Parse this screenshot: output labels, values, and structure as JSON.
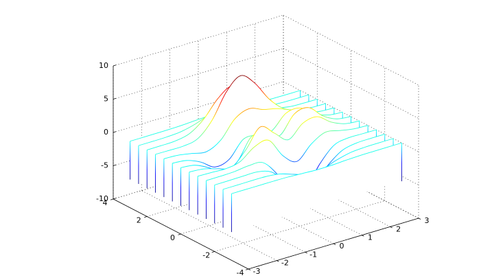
{
  "chart_data": {
    "type": "waterfall",
    "x": [
      -3,
      -2.5,
      -2,
      -1.5,
      -1,
      -0.5,
      0,
      0.5,
      1,
      1.5,
      2,
      2.5,
      3
    ],
    "y": [
      -3,
      -2.5,
      -2,
      -1.5,
      -1,
      -0.5,
      0,
      0.5,
      1,
      1.5,
      2,
      2.5,
      3
    ],
    "z": [
      [
        0,
        0,
        0,
        0,
        -0.03,
        -0.14,
        -0.24,
        -0.22,
        -0.11,
        -0.03,
        -0.01,
        0,
        0
      ],
      [
        0,
        0,
        0.02,
        0,
        -0.24,
        -0.92,
        -1.57,
        -1.41,
        -0.69,
        -0.18,
        -0.03,
        0,
        0
      ],
      [
        0,
        0.01,
        0.05,
        0.05,
        -0.59,
        -2.63,
        -4.75,
        -4.34,
        -2.1,
        -0.53,
        -0.06,
        0,
        0
      ],
      [
        0,
        0.01,
        0.08,
        0.33,
        0.15,
        -2.19,
        -5.68,
        -5.76,
        -2.63,
        -0.44,
        0.04,
        0.03,
        0
      ],
      [
        -0.01,
        -0.06,
        -0.13,
        0.3,
        1.86,
        2.22,
        -0.72,
        -2.22,
        -0.27,
        0.88,
        0.5,
        0.11,
        0.01
      ],
      [
        -0.03,
        -0.2,
        -0.8,
        -1.21,
        0.8,
        3.55,
        2,
        0.39,
        2.2,
        2.56,
        1.12,
        0.24,
        0.03
      ],
      [
        -0.04,
        -0.3,
        -1.33,
        -2.77,
        -1.65,
        1.48,
        0.98,
        0.38,
        2.94,
        3.27,
        1.41,
        0.3,
        0.03
      ],
      [
        -0.03,
        -0.25,
        -1.12,
        -2.49,
        -2,
        0.39,
        0.46,
        0.38,
        2.38,
        2.56,
        1.09,
        0.23,
        0.03
      ],
      [
        -0.01,
        -0.11,
        -0.48,
        -0.86,
        0.23,
        2.79,
        3.69,
        2.94,
        2.43,
        1.58,
        0.58,
        0.12,
        0.01
      ],
      [
        0,
        -0.02,
        -0.01,
        0.48,
        2.61,
        6.2,
        8,
        6.25,
        3.25,
        1.19,
        0.29,
        0.05,
        0
      ],
      [
        0,
        0.01,
        0.08,
        0.55,
        2.09,
        4.55,
        5.85,
        4.56,
        2.21,
        0.68,
        0.13,
        0.02,
        0
      ],
      [
        0,
        0,
        0.03,
        0.19,
        0.69,
        1.47,
        1.88,
        1.47,
        0.7,
        0.21,
        0.04,
        0,
        0
      ],
      [
        0,
        0,
        0.01,
        0.03,
        0.11,
        0.23,
        0.3,
        0.23,
        0.11,
        0.03,
        0.01,
        0,
        0
      ]
    ],
    "xlim": [
      -3,
      3
    ],
    "xticks": [
      -3,
      -2,
      -1,
      0,
      1,
      2,
      3
    ],
    "ylim": [
      -4,
      4
    ],
    "yticks": [
      -4,
      -2,
      0,
      2,
      4
    ],
    "zlim": [
      -10,
      10
    ],
    "zticks": [
      -10,
      -5,
      0,
      5,
      10
    ],
    "grid": true,
    "colormap": [
      "#00008f",
      "#0000ff",
      "#00ffff",
      "#ffff00",
      "#ff0000",
      "#800000"
    ]
  }
}
